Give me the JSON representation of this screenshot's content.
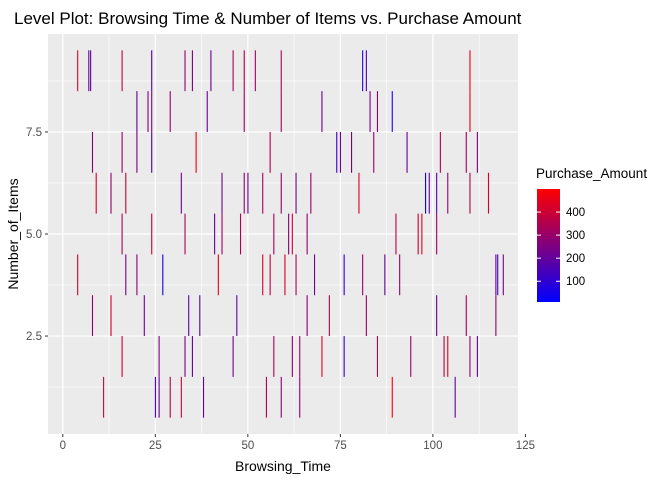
{
  "chart_data": {
    "type": "heatmap",
    "title": "Level Plot: Browsing Time & Number of Items vs. Purchase Amount",
    "xlabel": "Browsing_Time",
    "ylabel": "Number_of_Items",
    "xlim": [
      -4,
      123
    ],
    "ylim": [
      0.1,
      9.9
    ],
    "x_ticks": [
      0,
      25,
      50,
      75,
      100,
      125
    ],
    "y_ticks": [
      2.5,
      5.0,
      7.5
    ],
    "y_tick_labels": [
      "2.5",
      "5.0",
      "7.5"
    ],
    "tile_width": 0.25,
    "tile_height": 1,
    "grid": true,
    "legend": {
      "title": "Purchase_Amount",
      "position": "right",
      "ticks": [
        100,
        200,
        300,
        400
      ],
      "range": [
        10,
        500
      ],
      "low_color": "#0000ff",
      "high_color": "#ff0000"
    },
    "points": [
      {
        "x": 4,
        "y": 9,
        "v": 460
      },
      {
        "x": 7,
        "y": 9,
        "v": 220
      },
      {
        "x": 7.5,
        "y": 9,
        "v": 180
      },
      {
        "x": 16,
        "y": 9,
        "v": 380
      },
      {
        "x": 24,
        "y": 9,
        "v": 160
      },
      {
        "x": 33,
        "y": 9,
        "v": 300
      },
      {
        "x": 35,
        "y": 9,
        "v": 250
      },
      {
        "x": 40,
        "y": 9,
        "v": 220
      },
      {
        "x": 46,
        "y": 9,
        "v": 330
      },
      {
        "x": 49,
        "y": 9,
        "v": 350
      },
      {
        "x": 52,
        "y": 9,
        "v": 300
      },
      {
        "x": 59,
        "y": 9,
        "v": 340
      },
      {
        "x": 81,
        "y": 9,
        "v": 80
      },
      {
        "x": 82,
        "y": 9,
        "v": 150
      },
      {
        "x": 110,
        "y": 9,
        "v": 470
      },
      {
        "x": 23,
        "y": 8,
        "v": 250
      },
      {
        "x": 24,
        "y": 8,
        "v": 270
      },
      {
        "x": 20,
        "y": 8,
        "v": 200
      },
      {
        "x": 29,
        "y": 8,
        "v": 300
      },
      {
        "x": 39,
        "y": 8,
        "v": 210
      },
      {
        "x": 49,
        "y": 8,
        "v": 320
      },
      {
        "x": 59,
        "y": 8,
        "v": 330
      },
      {
        "x": 70,
        "y": 8,
        "v": 230
      },
      {
        "x": 83,
        "y": 8,
        "v": 240
      },
      {
        "x": 85,
        "y": 8,
        "v": 280
      },
      {
        "x": 89,
        "y": 8,
        "v": 80
      },
      {
        "x": 110,
        "y": 8,
        "v": 460
      },
      {
        "x": 8,
        "y": 7,
        "v": 270
      },
      {
        "x": 16,
        "y": 7,
        "v": 300
      },
      {
        "x": 20,
        "y": 7,
        "v": 240
      },
      {
        "x": 24,
        "y": 7,
        "v": 160
      },
      {
        "x": 36,
        "y": 7,
        "v": 460
      },
      {
        "x": 56,
        "y": 7,
        "v": 350
      },
      {
        "x": 74,
        "y": 7,
        "v": 120
      },
      {
        "x": 75,
        "y": 7,
        "v": 230
      },
      {
        "x": 78,
        "y": 7,
        "v": 240
      },
      {
        "x": 84,
        "y": 7,
        "v": 310
      },
      {
        "x": 93,
        "y": 7,
        "v": 200
      },
      {
        "x": 102,
        "y": 7,
        "v": 350
      },
      {
        "x": 109,
        "y": 7,
        "v": 330
      },
      {
        "x": 112,
        "y": 7,
        "v": 250
      },
      {
        "x": 9,
        "y": 6,
        "v": 420
      },
      {
        "x": 13,
        "y": 6,
        "v": 300
      },
      {
        "x": 17,
        "y": 6,
        "v": 390
      },
      {
        "x": 32,
        "y": 6,
        "v": 220
      },
      {
        "x": 43,
        "y": 6,
        "v": 230
      },
      {
        "x": 49,
        "y": 6,
        "v": 280
      },
      {
        "x": 50,
        "y": 6,
        "v": 220
      },
      {
        "x": 54,
        "y": 6,
        "v": 330
      },
      {
        "x": 59,
        "y": 6,
        "v": 300
      },
      {
        "x": 63,
        "y": 6,
        "v": 210
      },
      {
        "x": 67,
        "y": 6,
        "v": 300
      },
      {
        "x": 80,
        "y": 6,
        "v": 430
      },
      {
        "x": 98,
        "y": 6,
        "v": 30
      },
      {
        "x": 99,
        "y": 6,
        "v": 200
      },
      {
        "x": 101,
        "y": 6,
        "v": 180
      },
      {
        "x": 104,
        "y": 6,
        "v": 310
      },
      {
        "x": 110,
        "y": 6,
        "v": 360
      },
      {
        "x": 115,
        "y": 6,
        "v": 420
      },
      {
        "x": 16,
        "y": 5,
        "v": 340
      },
      {
        "x": 24,
        "y": 5,
        "v": 420
      },
      {
        "x": 33,
        "y": 5,
        "v": 340
      },
      {
        "x": 41,
        "y": 5,
        "v": 200
      },
      {
        "x": 43,
        "y": 5,
        "v": 310
      },
      {
        "x": 48,
        "y": 5,
        "v": 350
      },
      {
        "x": 57,
        "y": 5,
        "v": 330
      },
      {
        "x": 61,
        "y": 5,
        "v": 260
      },
      {
        "x": 62,
        "y": 5,
        "v": 420
      },
      {
        "x": 66,
        "y": 5,
        "v": 300
      },
      {
        "x": 90,
        "y": 5,
        "v": 360
      },
      {
        "x": 96,
        "y": 5,
        "v": 400
      },
      {
        "x": 97,
        "y": 5,
        "v": 460
      },
      {
        "x": 101,
        "y": 5,
        "v": 310
      },
      {
        "x": 4,
        "y": 4,
        "v": 420
      },
      {
        "x": 17,
        "y": 4,
        "v": 230
      },
      {
        "x": 20,
        "y": 4,
        "v": 290
      },
      {
        "x": 27,
        "y": 4,
        "v": 50
      },
      {
        "x": 42,
        "y": 4,
        "v": 450
      },
      {
        "x": 54,
        "y": 4,
        "v": 420
      },
      {
        "x": 56,
        "y": 4,
        "v": 380
      },
      {
        "x": 60,
        "y": 4,
        "v": 420
      },
      {
        "x": 63,
        "y": 4,
        "v": 350
      },
      {
        "x": 68,
        "y": 4,
        "v": 230
      },
      {
        "x": 76,
        "y": 4,
        "v": 100
      },
      {
        "x": 81,
        "y": 4,
        "v": 300
      },
      {
        "x": 87,
        "y": 4,
        "v": 200
      },
      {
        "x": 91,
        "y": 4,
        "v": 300
      },
      {
        "x": 117,
        "y": 4,
        "v": 200
      },
      {
        "x": 117.5,
        "y": 4,
        "v": 150
      },
      {
        "x": 119,
        "y": 4,
        "v": 230
      },
      {
        "x": 8,
        "y": 3,
        "v": 280
      },
      {
        "x": 13,
        "y": 3,
        "v": 400
      },
      {
        "x": 22,
        "y": 3,
        "v": 230
      },
      {
        "x": 34,
        "y": 3,
        "v": 200
      },
      {
        "x": 37,
        "y": 3,
        "v": 150
      },
      {
        "x": 47,
        "y": 3,
        "v": 190
      },
      {
        "x": 66,
        "y": 3,
        "v": 280
      },
      {
        "x": 72,
        "y": 3,
        "v": 330
      },
      {
        "x": 82,
        "y": 3,
        "v": 310
      },
      {
        "x": 101,
        "y": 3,
        "v": 210
      },
      {
        "x": 109,
        "y": 3,
        "v": 320
      },
      {
        "x": 117,
        "y": 3,
        "v": 310
      },
      {
        "x": 16,
        "y": 2,
        "v": 390
      },
      {
        "x": 26,
        "y": 2,
        "v": 260
      },
      {
        "x": 33,
        "y": 2,
        "v": 250
      },
      {
        "x": 35,
        "y": 2,
        "v": 200
      },
      {
        "x": 46,
        "y": 2,
        "v": 220
      },
      {
        "x": 57,
        "y": 2,
        "v": 340
      },
      {
        "x": 62,
        "y": 2,
        "v": 280
      },
      {
        "x": 64,
        "y": 2,
        "v": 330
      },
      {
        "x": 70,
        "y": 2,
        "v": 450
      },
      {
        "x": 76,
        "y": 2,
        "v": 130
      },
      {
        "x": 85,
        "y": 2,
        "v": 350
      },
      {
        "x": 94,
        "y": 2,
        "v": 300
      },
      {
        "x": 103,
        "y": 2,
        "v": 350
      },
      {
        "x": 104,
        "y": 2,
        "v": 460
      },
      {
        "x": 110,
        "y": 2,
        "v": 290
      },
      {
        "x": 112,
        "y": 2,
        "v": 200
      },
      {
        "x": 11,
        "y": 1,
        "v": 420
      },
      {
        "x": 25,
        "y": 1,
        "v": 120
      },
      {
        "x": 26,
        "y": 1,
        "v": 200
      },
      {
        "x": 29,
        "y": 1,
        "v": 350
      },
      {
        "x": 32,
        "y": 1,
        "v": 380
      },
      {
        "x": 38,
        "y": 1,
        "v": 200
      },
      {
        "x": 55,
        "y": 1,
        "v": 350
      },
      {
        "x": 59,
        "y": 1,
        "v": 280
      },
      {
        "x": 64,
        "y": 1,
        "v": 300
      },
      {
        "x": 89,
        "y": 1,
        "v": 480
      },
      {
        "x": 106,
        "y": 1,
        "v": 200
      }
    ]
  }
}
